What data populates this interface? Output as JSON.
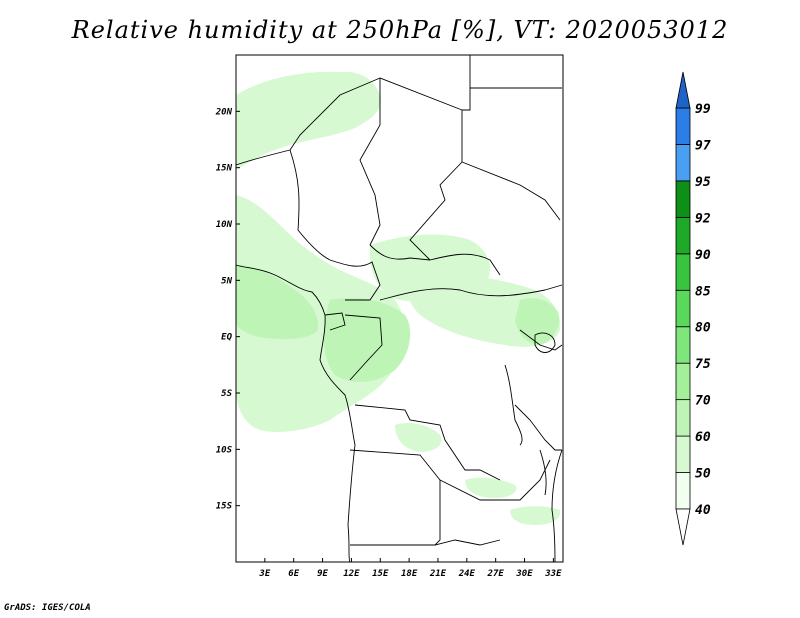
{
  "title": "Relative humidity at 250hPa [%], VT: 2020053012",
  "footer": "GrADS: IGES/COLA",
  "map": {
    "lon_range": [
      0,
      34
    ],
    "lat_range": [
      -20,
      25
    ],
    "xticks": [
      "3E",
      "6E",
      "9E",
      "12E",
      "15E",
      "18E",
      "21E",
      "24E",
      "27E",
      "30E",
      "33E"
    ],
    "xtick_values": [
      3,
      6,
      9,
      12,
      15,
      18,
      21,
      24,
      27,
      30,
      33
    ],
    "yticks": [
      "20N",
      "15N",
      "10N",
      "5N",
      "EQ",
      "5S",
      "10S",
      "15S"
    ],
    "ytick_values": [
      20,
      15,
      10,
      5,
      0,
      -5,
      -10,
      -15
    ]
  },
  "colorbar": {
    "levels": [
      "40",
      "50",
      "60",
      "70",
      "75",
      "80",
      "85",
      "90",
      "92",
      "95",
      "97",
      "99"
    ],
    "colors": [
      "#f0fff0",
      "#d7f9d2",
      "#bff4b7",
      "#a3ef9a",
      "#7ee67a",
      "#5ad85b",
      "#39c43f",
      "#1ea929",
      "#0e8f18",
      "#4a9ff2",
      "#2b7ee6",
      "#1f62c8"
    ],
    "below_color": "#ffffff",
    "above_color": "#1f62c8"
  },
  "colors": {
    "green_light": "#d7f9d2",
    "green_mid": "#bff4b7",
    "green_strong": "#a3ef9a"
  }
}
